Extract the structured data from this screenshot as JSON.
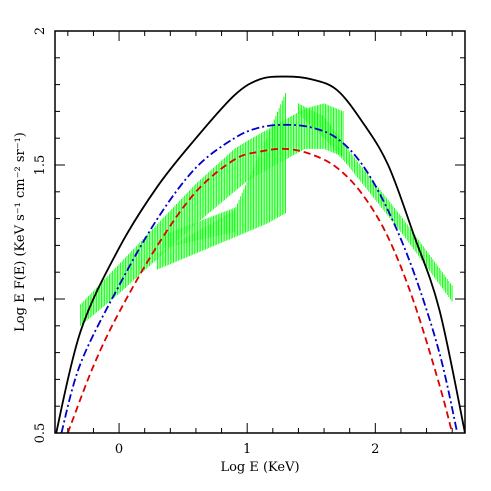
{
  "chart_data": {
    "type": "line",
    "xlabel": "Log E   (KeV)",
    "ylabel": "Log E F(E)   (KeV s⁻¹ cm⁻² sr⁻¹)",
    "xlim": [
      -0.5,
      2.7
    ],
    "ylim": [
      0.5,
      2.0
    ],
    "x_ticks": [
      0,
      1,
      2
    ],
    "y_ticks": [
      0.5,
      1,
      1.5,
      2
    ],
    "x_tick_labels": [
      "0",
      "1",
      "2"
    ],
    "y_tick_labels": [
      "0.5",
      "1",
      "1.5",
      "2"
    ],
    "grid": false,
    "legend": "none",
    "series": [
      {
        "style": "solid",
        "color": "#000000",
        "x": [
          -0.5,
          -0.3,
          0.0,
          0.3,
          0.6,
          0.9,
          1.1,
          1.3,
          1.5,
          1.7,
          1.9,
          2.1,
          2.3,
          2.5,
          2.7
        ],
        "y": [
          0.48,
          0.88,
          1.19,
          1.42,
          1.6,
          1.76,
          1.82,
          1.83,
          1.82,
          1.78,
          1.66,
          1.5,
          1.24,
          0.96,
          0.5
        ]
      },
      {
        "style": "dash-dot",
        "color": "#0000cc",
        "x": [
          -0.45,
          -0.3,
          0.0,
          0.3,
          0.6,
          0.9,
          1.1,
          1.3,
          1.5,
          1.7,
          1.9,
          2.1,
          2.3,
          2.5,
          2.64
        ],
        "y": [
          0.5,
          0.76,
          1.05,
          1.3,
          1.49,
          1.6,
          1.64,
          1.65,
          1.64,
          1.6,
          1.5,
          1.33,
          1.1,
          0.8,
          0.5
        ]
      },
      {
        "style": "dashed",
        "color": "#dd0000",
        "x": [
          -0.4,
          -0.2,
          0.0,
          0.3,
          0.6,
          0.9,
          1.1,
          1.3,
          1.5,
          1.7,
          1.9,
          2.1,
          2.3,
          2.5,
          2.6
        ],
        "y": [
          0.5,
          0.75,
          0.95,
          1.2,
          1.4,
          1.52,
          1.55,
          1.56,
          1.54,
          1.49,
          1.39,
          1.23,
          0.99,
          0.68,
          0.5
        ]
      }
    ],
    "bands": [
      {
        "color": "#00ff00",
        "x": [
          -0.3,
          0.0,
          0.3,
          0.6,
          0.9,
          1.0,
          1.15,
          1.3,
          1.45,
          1.6,
          1.75
        ],
        "lo": [
          0.9,
          1.02,
          1.15,
          1.28,
          1.4,
          1.44,
          1.48,
          1.52,
          1.56,
          1.56,
          1.53
        ],
        "hi": [
          0.98,
          1.13,
          1.28,
          1.43,
          1.56,
          1.59,
          1.63,
          1.67,
          1.71,
          1.73,
          1.7
        ]
      },
      {
        "color": "#00ff00",
        "x": [
          0.3,
          0.6,
          0.9,
          1.15,
          1.3
        ],
        "lo": [
          1.11,
          1.17,
          1.23,
          1.28,
          1.32
        ],
        "hi": [
          1.17,
          1.25,
          1.33,
          1.6,
          1.77
        ]
      },
      {
        "color": "#00ff00",
        "x": [
          0.35,
          0.9
        ],
        "lo": [
          1.19,
          1.25
        ],
        "hi": [
          1.24,
          1.34
        ]
      },
      {
        "color": "#00ff00",
        "x": [
          1.4,
          1.6,
          1.8,
          2.0,
          2.2,
          2.4,
          2.6
        ],
        "lo": [
          1.69,
          1.6,
          1.49,
          1.37,
          1.25,
          1.12,
          0.99
        ],
        "hi": [
          1.73,
          1.68,
          1.55,
          1.43,
          1.31,
          1.18,
          1.05
        ]
      }
    ]
  }
}
